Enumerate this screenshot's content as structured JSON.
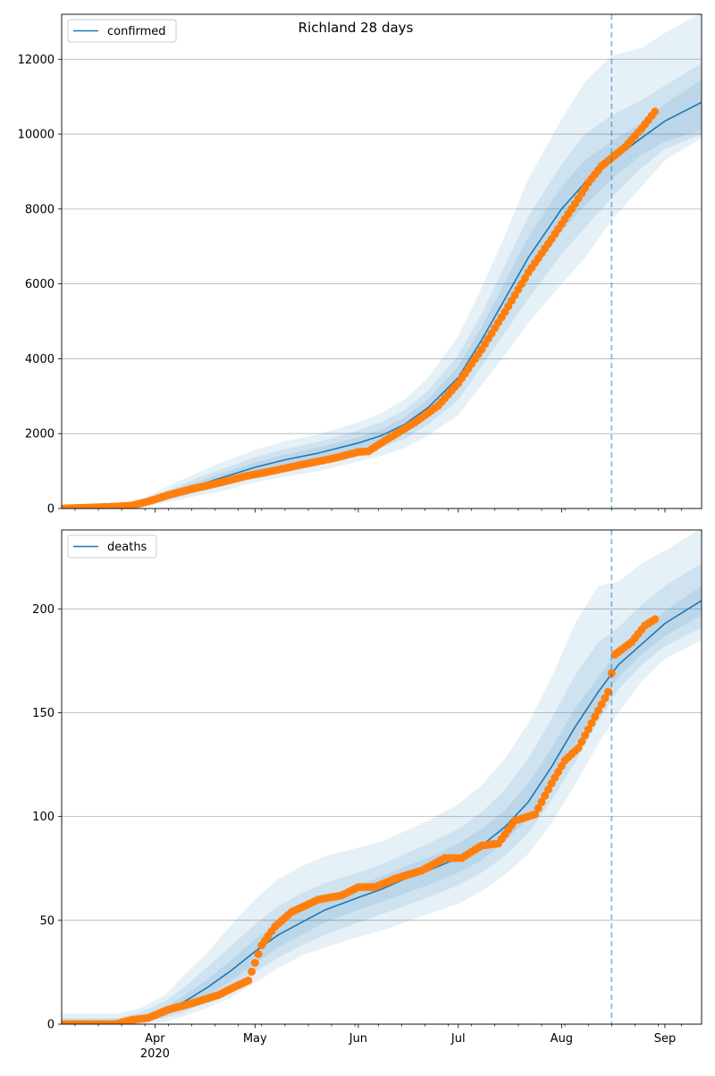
{
  "title": "Richland 28 days",
  "colors": {
    "model_line": "#1f77b4",
    "observed": "#ff7f0e",
    "band": "#1f77b4",
    "grid": "#b0b0b0",
    "forecast_marker": "#1f77b4"
  },
  "x_axis": {
    "month_ticks": [
      {
        "date": "2020-04-01",
        "label": "Apr"
      },
      {
        "date": "2020-05-01",
        "label": "May"
      },
      {
        "date": "2020-06-01",
        "label": "Jun"
      },
      {
        "date": "2020-07-01",
        "label": "Jul"
      },
      {
        "date": "2020-08-01",
        "label": "Aug"
      },
      {
        "date": "2020-09-01",
        "label": "Sep"
      }
    ],
    "year_label": "2020",
    "range": [
      "2020-03-04",
      "2020-09-12"
    ]
  },
  "forecast_start": "2020-08-16",
  "chart_data": [
    {
      "type": "line",
      "legend": "confirmed",
      "legend_position": "top-left",
      "grid": "horizontal",
      "ylim": [
        0,
        13200
      ],
      "yticks": [
        0,
        2000,
        4000,
        6000,
        8000,
        10000,
        12000
      ],
      "model": {
        "x": [
          "2020-03-04",
          "2020-03-13",
          "2020-03-21",
          "2020-03-27",
          "2020-04-01",
          "2020-04-08",
          "2020-04-15",
          "2020-04-22",
          "2020-05-01",
          "2020-05-10",
          "2020-05-20",
          "2020-06-01",
          "2020-06-08",
          "2020-06-15",
          "2020-06-22",
          "2020-07-01",
          "2020-07-08",
          "2020-07-15",
          "2020-07-22",
          "2020-08-01",
          "2020-08-08",
          "2020-08-16",
          "2020-08-25",
          "2020-09-01",
          "2020-09-12"
        ],
        "y": [
          0,
          0,
          20,
          100,
          240,
          450,
          650,
          850,
          1100,
          1300,
          1480,
          1750,
          1950,
          2250,
          2700,
          3500,
          4500,
          5600,
          6700,
          8000,
          8700,
          9300,
          9900,
          10350,
          10850
        ],
        "bands": [
          {
            "lo": [
              0,
              0,
              0,
              20,
              100,
              230,
              360,
              480,
              700,
              850,
              1000,
              1250,
              1410,
              1620,
              1950,
              2500,
              3300,
              4100,
              4950,
              6000,
              6700,
              7700,
              8600,
              9300,
              9900
            ],
            "hi": [
              50,
              50,
              80,
              200,
              420,
              720,
              1000,
              1270,
              1560,
              1800,
              1980,
              2300,
              2550,
              2920,
              3500,
              4600,
              5900,
              7300,
              8800,
              10400,
              11400,
              12100,
              12300,
              12700,
              13250
            ]
          },
          {
            "lo": [
              0,
              0,
              5,
              40,
              140,
              300,
              460,
              610,
              840,
              1020,
              1180,
              1450,
              1630,
              1870,
              2250,
              2900,
              3800,
              4700,
              5600,
              6800,
              7500,
              8300,
              9100,
              9600,
              10000
            ],
            "hi": [
              30,
              30,
              50,
              160,
              340,
              600,
              860,
              1080,
              1370,
              1590,
              1780,
              2080,
              2310,
              2640,
              3150,
              4100,
              5200,
              6500,
              7800,
              9200,
              10000,
              10500,
              10900,
              11300,
              11900
            ]
          },
          {
            "lo": [
              0,
              0,
              10,
              60,
              180,
              370,
              550,
              730,
              970,
              1160,
              1330,
              1600,
              1790,
              2060,
              2480,
              3200,
              4150,
              5150,
              6150,
              7400,
              8100,
              8800,
              9450,
              9800,
              10100
            ],
            "hi": [
              15,
              15,
              35,
              140,
              300,
              530,
              750,
              970,
              1230,
              1440,
              1630,
              1900,
              2110,
              2440,
              2920,
              3800,
              4850,
              6050,
              7250,
              8600,
              9300,
              9800,
              10300,
              10800,
              11450
            ]
          }
        ]
      },
      "observed": {
        "x": [
          "2020-03-04",
          "2020-03-20",
          "2020-03-25",
          "2020-03-30",
          "2020-04-05",
          "2020-04-12",
          "2020-04-20",
          "2020-04-28",
          "2020-05-05",
          "2020-05-15",
          "2020-05-25",
          "2020-06-01",
          "2020-06-04",
          "2020-06-10",
          "2020-06-18",
          "2020-06-25",
          "2020-07-01",
          "2020-07-08",
          "2020-07-15",
          "2020-07-22",
          "2020-07-29",
          "2020-08-04",
          "2020-08-09",
          "2020-08-13",
          "2020-08-20",
          "2020-08-25",
          "2020-08-29"
        ],
        "y": [
          0,
          50,
          80,
          190,
          360,
          520,
          680,
          860,
          980,
          1170,
          1350,
          1510,
          1530,
          1870,
          2300,
          2750,
          3350,
          4250,
          5250,
          6300,
          7200,
          8000,
          8700,
          9150,
          9650,
          10150,
          10600
        ]
      }
    },
    {
      "type": "line",
      "legend": "deaths",
      "legend_position": "top-left",
      "grid": "horizontal",
      "ylim": [
        0,
        238
      ],
      "yticks": [
        0,
        50,
        100,
        150,
        200
      ],
      "model": {
        "x": [
          "2020-03-04",
          "2020-03-21",
          "2020-03-28",
          "2020-04-04",
          "2020-04-10",
          "2020-04-17",
          "2020-04-24",
          "2020-05-01",
          "2020-05-08",
          "2020-05-15",
          "2020-05-22",
          "2020-06-01",
          "2020-06-08",
          "2020-06-15",
          "2020-06-22",
          "2020-07-01",
          "2020-07-08",
          "2020-07-15",
          "2020-07-22",
          "2020-07-29",
          "2020-08-05",
          "2020-08-12",
          "2020-08-18",
          "2020-08-25",
          "2020-09-01",
          "2020-09-12"
        ],
        "y": [
          0,
          1,
          3,
          6,
          11,
          18,
          26,
          35,
          43,
          49,
          55,
          61,
          65,
          70,
          74,
          80,
          86,
          95,
          107,
          124,
          143,
          160,
          173,
          183,
          193,
          204
        ],
        "bands": [
          {
            "lo": [
              0,
              0,
              0,
              1,
              4,
              8,
              13,
              20,
              27,
              33,
              37,
              42,
              45,
              49,
              53,
              58,
              64,
              72,
              82,
              97,
              115,
              135,
              150,
              165,
              176,
              185
            ],
            "hi": [
              5,
              5,
              8,
              14,
              24,
              35,
              48,
              60,
              70,
              76,
              81,
              85,
              88,
              93,
              98,
              106,
              115,
              128,
              145,
              167,
              193,
              211,
              213,
              222,
              228,
              239
            ]
          },
          {
            "lo": [
              0,
              0,
              1,
              3,
              6,
              11,
              17,
              25,
              32,
              38,
              43,
              49,
              53,
              57,
              61,
              67,
              73,
              81,
              92,
              108,
              126,
              146,
              161,
              173,
              182,
              191
            ],
            "hi": [
              3,
              3,
              6,
              11,
              18,
              28,
              38,
              48,
              57,
              63,
              68,
              73,
              77,
              82,
              87,
              94,
              102,
              113,
              128,
              147,
              168,
              184,
              191,
              202,
              211,
              222
            ]
          },
          {
            "lo": [
              0,
              0,
              2,
              4,
              8,
              14,
              21,
              29,
              37,
              43,
              49,
              55,
              59,
              63,
              67,
              73,
              79,
              88,
              99,
              116,
              135,
              153,
              167,
              178,
              187,
              197
            ],
            "hi": [
              2,
              2,
              4,
              8,
              14,
              22,
              31,
              41,
              49,
              55,
              61,
              67,
              71,
              76,
              80,
              87,
              94,
              103,
              116,
              133,
              152,
              167,
              180,
              190,
              199,
              211
            ]
          }
        ]
      },
      "observed": {
        "x": [
          "2020-03-04",
          "2020-03-20",
          "2020-03-25",
          "2020-03-30",
          "2020-04-05",
          "2020-04-12",
          "2020-04-20",
          "2020-04-25",
          "2020-04-29",
          "2020-05-03",
          "2020-05-07",
          "2020-05-12",
          "2020-05-20",
          "2020-05-27",
          "2020-06-01",
          "2020-06-06",
          "2020-06-12",
          "2020-06-20",
          "2020-06-27",
          "2020-07-02",
          "2020-07-08",
          "2020-07-13",
          "2020-07-18",
          "2020-07-24",
          "2020-07-29",
          "2020-08-02",
          "2020-08-06",
          "2020-08-11",
          "2020-08-15",
          "2020-08-17",
          "2020-08-22",
          "2020-08-26",
          "2020-08-29"
        ],
        "y": [
          0,
          0,
          2,
          3,
          7,
          10,
          14,
          18,
          21,
          38,
          47,
          54,
          60,
          62,
          66,
          66,
          70,
          74,
          80,
          80,
          86,
          87,
          98,
          101,
          116,
          127,
          133,
          148,
          160,
          178,
          184,
          192,
          195
        ]
      }
    }
  ]
}
